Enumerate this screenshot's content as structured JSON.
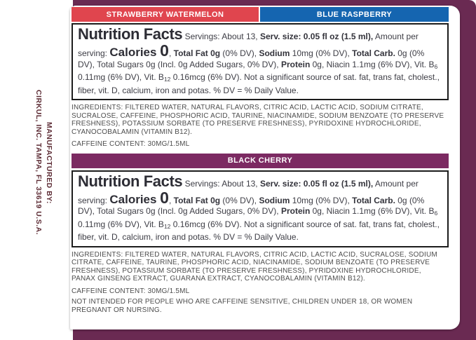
{
  "colors": {
    "backdrop": "#6a2a52",
    "strawberry": "#e0454e",
    "blue": "#1565b0",
    "cherry": "#7c2a62",
    "side_text": "#5d2c35"
  },
  "side_text": {
    "line1": "MANUFACTURED BY:",
    "line2": "CIRKUL, INC. TAMPA, FL 33619 U.S.A."
  },
  "flavors": {
    "strawberry_watermelon": {
      "label": "STRAWBERRY WATERMELON"
    },
    "blue_raspberry": {
      "label": "BLUE RASPBERRY"
    },
    "black_cherry": {
      "label": "BLACK CHERRY"
    }
  },
  "nutrition_segments": [
    {
      "t": "Nutrition Facts",
      "c": "nf-title"
    },
    {
      "t": " Servings: About 13, ",
      "c": ""
    },
    {
      "t": "Serv. size: 0.05 fl oz (1.5 ml),",
      "c": "b"
    },
    {
      "t": " Amount per serving: ",
      "c": ""
    },
    {
      "t": "Calories ",
      "c": "cal-word"
    },
    {
      "t": "0",
      "c": "cal-zero"
    },
    {
      "t": ", ",
      "c": ""
    },
    {
      "t": "Total Fat 0g",
      "c": "b"
    },
    {
      "t": " (0% DV), ",
      "c": ""
    },
    {
      "t": "Sodium",
      "c": "b"
    },
    {
      "t": " 10mg (0% DV), ",
      "c": ""
    },
    {
      "t": "Total Carb.",
      "c": "b"
    },
    {
      "t": " 0g (0% DV), Total Sugars 0g (Incl. 0g Added Sugars, 0% DV), ",
      "c": ""
    },
    {
      "t": "Protein",
      "c": "b"
    },
    {
      "t": " 0g, Niacin 1.1mg (6% DV), Vit. B",
      "c": ""
    },
    {
      "t": "6",
      "c": "sub"
    },
    {
      "t": " 0.11mg (6% DV), Vit. B",
      "c": ""
    },
    {
      "t": "12",
      "c": "sub"
    },
    {
      "t": " 0.16mcg (6% DV). Not a significant source of sat. fat, trans fat, cholest., fiber, vit. D, calcium, iron and potas. % DV = % Daily Value.",
      "c": ""
    }
  ],
  "panel1": {
    "ingredients": "INGREDIENTS: FILTERED WATER, NATURAL FLAVORS, CITRIC ACID, LACTIC ACID, SODIUM CITRATE, SUCRALOSE, CAFFEINE, PHOSPHORIC ACID, TAURINE, NIACINAMIDE, SODIUM BENZOATE (TO PRESERVE FRESHNESS), POTASSIUM SORBATE (TO PRESERVE FRESHNESS), PYRIDOXINE HYDROCHLORIDE, CYANOCOBALAMIN (VITAMIN B12).",
    "caffeine": "CAFFEINE CONTENT: 30MG/1.5ML"
  },
  "panel2": {
    "ingredients": "INGREDIENTS: FILTERED WATER, NATURAL FLAVORS, CITRIC ACID, LACTIC ACID, SUCRALOSE, SODIUM CITRATE, CAFFEINE, TAURINE, PHOSPHORIC ACID, NIACINAMIDE, SODIUM BENZOATE (TO PRESERVE FRESHNESS), POTASSIUM SORBATE (TO PRESERVE FRESHNESS), PYRIDOXINE HYDROCHLORIDE, PANAX GINSENG EXTRACT, GUARANA EXTRACT, CYANOCOBALAMIN (VITAMIN B12).",
    "caffeine": "CAFFEINE CONTENT: 30MG/1.5ML",
    "warning": "NOT INTENDED FOR PEOPLE WHO ARE CAFFEINE SENSITIVE, CHILDREN UNDER 18, OR WOMEN PREGNANT OR NURSING."
  }
}
